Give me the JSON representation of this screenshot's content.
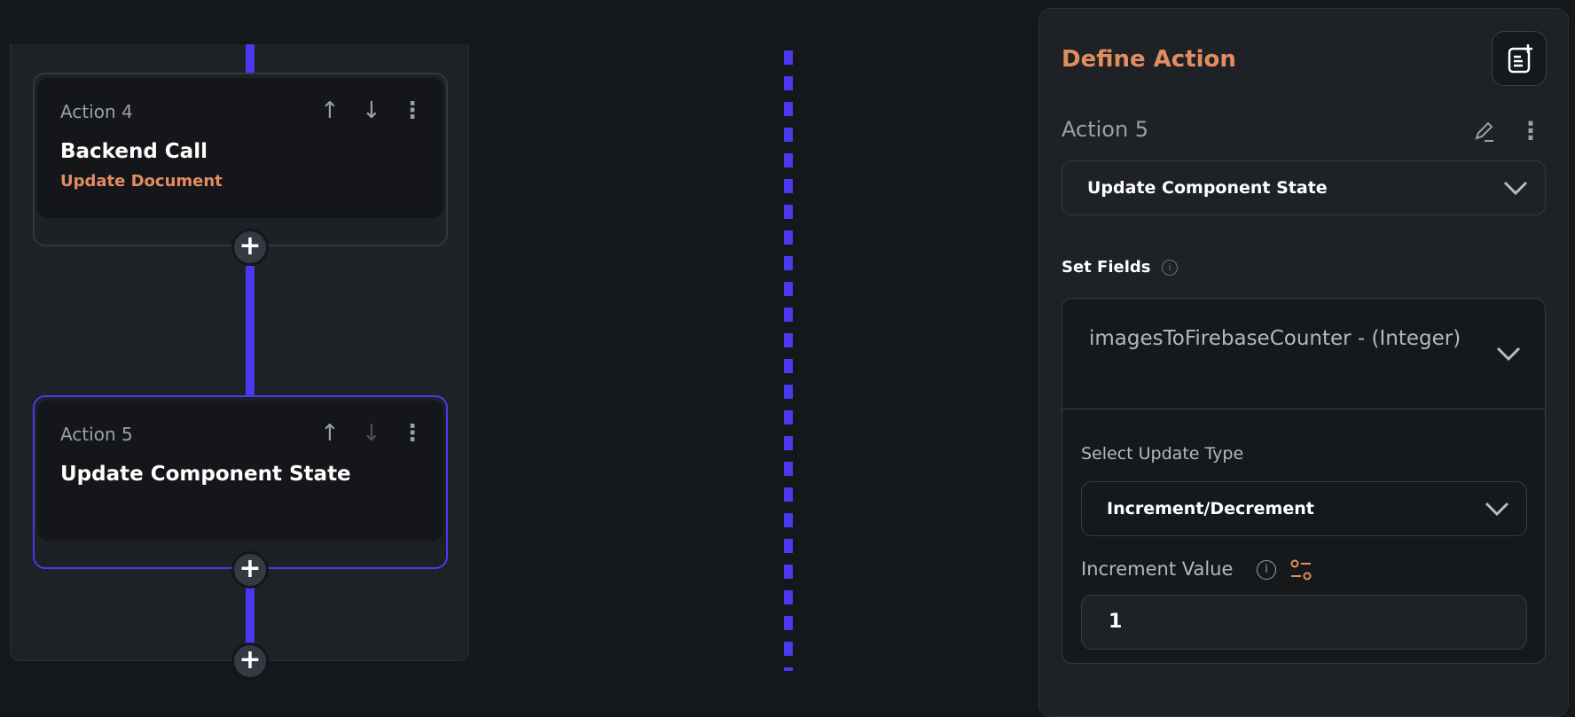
{
  "flow": {
    "cards": [
      {
        "label": "Action 4",
        "title": "Backend Call",
        "subtitle": "Update Document",
        "selected": false
      },
      {
        "label": "Action 5",
        "title": "Update Component State",
        "subtitle": "",
        "selected": true
      }
    ]
  },
  "panel": {
    "title": "Define Action",
    "action_label": "Action 5",
    "action_type": "Update Component State",
    "set_fields_label": "Set Fields",
    "field_name": "imagesToFirebaseCounter - (Integer)",
    "update_type_label": "Select Update Type",
    "update_type_value": "Increment/Decrement",
    "increment_label": "Increment Value",
    "increment_value": "1"
  },
  "colors": {
    "accent": "#e38c5f",
    "primary": "#4b39ef",
    "background": "#14181b",
    "panel": "#1e2125"
  }
}
